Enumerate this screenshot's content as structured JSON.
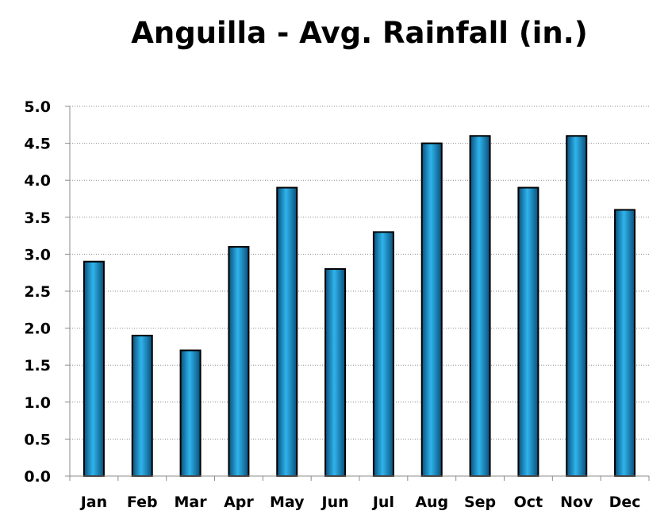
{
  "chart_data": {
    "type": "bar",
    "title": "Anguilla - Avg. Rainfall (in.)",
    "xlabel": "",
    "ylabel": "",
    "categories": [
      "Jan",
      "Feb",
      "Mar",
      "Apr",
      "May",
      "Jun",
      "Jul",
      "Aug",
      "Sep",
      "Oct",
      "Nov",
      "Dec"
    ],
    "values": [
      2.9,
      1.9,
      1.7,
      3.1,
      3.9,
      2.8,
      3.3,
      4.5,
      4.6,
      3.9,
      4.6,
      3.6
    ],
    "ylim": [
      0,
      5
    ],
    "yticks": [
      "0.0",
      "0.5",
      "1.0",
      "1.5",
      "2.0",
      "2.5",
      "3.0",
      "3.5",
      "4.0",
      "4.5",
      "5.0"
    ],
    "grid": true,
    "legend": "none",
    "colors": {
      "bar_light": "#2fb4ec",
      "bar_dark": "#0a4f7a",
      "bar_border": "#000000",
      "grid": "#8c8c8c",
      "axis": "#8c8c8c"
    }
  }
}
